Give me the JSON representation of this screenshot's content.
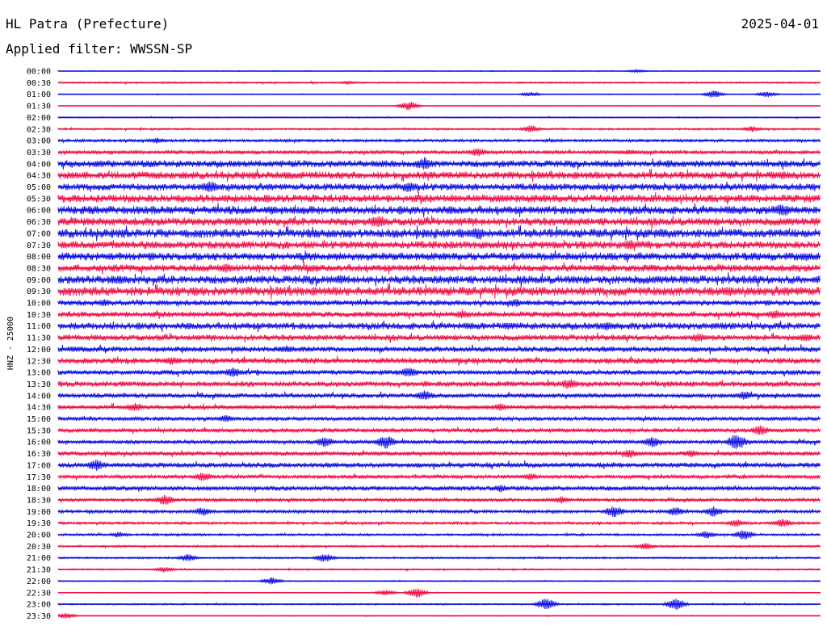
{
  "header": {
    "station": "HL Patra (Prefecture)",
    "date": "2025-04-01",
    "filter": "Applied filter: WWSSN-SP"
  },
  "colors": {
    "even": "#1010e0",
    "odd": "#ee1048"
  },
  "chart_data": {
    "type": "line",
    "title": "HL Patra (Prefecture)",
    "ylabel": "HNZ - 25000",
    "categories": [
      "00:00",
      "00:30",
      "01:00",
      "01:30",
      "02:00",
      "02:30",
      "03:00",
      "03:30",
      "04:00",
      "04:30",
      "05:00",
      "05:30",
      "06:00",
      "06:30",
      "07:00",
      "07:30",
      "08:00",
      "08:30",
      "09:00",
      "09:30",
      "10:00",
      "10:30",
      "11:00",
      "11:30",
      "12:00",
      "12:30",
      "13:00",
      "13:30",
      "14:00",
      "14:30",
      "15:00",
      "15:30",
      "16:00",
      "16:30",
      "17:00",
      "17:30",
      "18:00",
      "18:30",
      "19:00",
      "19:30",
      "20:00",
      "20:30",
      "21:00",
      "21:30",
      "22:00",
      "22:30",
      "23:00",
      "23:30"
    ],
    "noise_level": [
      0.4,
      0.8,
      0.5,
      0.3,
      0.6,
      1.0,
      1.4,
      1.8,
      3.5,
      3.8,
      3.5,
      4.0,
      4.2,
      4.0,
      4.5,
      3.8,
      4.0,
      3.6,
      4.2,
      4.6,
      2.8,
      3.0,
      3.5,
      3.0,
      2.8,
      3.0,
      2.6,
      2.8,
      2.4,
      2.2,
      2.0,
      2.2,
      2.0,
      2.2,
      2.6,
      2.0,
      2.4,
      1.6,
      1.6,
      1.3,
      1.2,
      1.0,
      0.9,
      0.8,
      0.6,
      0.5,
      0.8,
      0.4
    ],
    "events": [
      [
        0.76,
        2
      ],
      [
        0.38,
        2
      ],
      [
        0.62,
        3
      ],
      [
        0.86,
        5
      ],
      [
        0.93,
        4
      ],
      [
        0.46,
        6
      ],
      [
        0.91,
        4
      ],
      [
        0.62,
        5
      ],
      [
        0.13,
        4
      ],
      [
        0.3,
        2
      ],
      [
        0.55,
        6
      ],
      [
        0.75,
        4
      ],
      [
        0.48,
        9
      ],
      [
        0.8,
        5
      ],
      [
        0.3,
        5
      ],
      [
        0.95,
        6
      ],
      [
        0.46,
        7
      ],
      [
        0.2,
        8
      ],
      [
        0.58,
        5
      ],
      [
        0.28,
        6
      ],
      [
        0.95,
        9
      ],
      [
        0.42,
        9
      ],
      [
        0.79,
        6
      ],
      [
        0.55,
        8
      ],
      [
        0.75,
        7
      ],
      [
        0.98,
        6
      ],
      [
        0.22,
        7
      ],
      [
        0.33,
        5
      ],
      [
        0.08,
        6
      ],
      [
        0.37,
        6
      ],
      [
        0.18,
        5
      ],
      [
        0.88,
        7
      ],
      [
        0.06,
        5
      ],
      [
        0.6,
        6
      ],
      [
        0.53,
        6
      ],
      [
        0.94,
        6
      ],
      [
        0.72,
        6
      ],
      [
        0.59,
        5
      ],
      [
        0.98,
        6
      ],
      [
        0.84,
        6
      ],
      [
        0.02,
        4
      ],
      [
        0.3,
        5
      ],
      [
        0.15,
        6
      ],
      [
        0.46,
        7
      ],
      [
        0.23,
        7
      ],
      [
        0.67,
        7
      ],
      [
        0.9,
        6
      ],
      [
        0.48,
        7
      ],
      [
        0.1,
        6
      ],
      [
        0.58,
        5
      ],
      [
        0.22,
        5
      ],
      [
        0.92,
        7
      ],
      [
        0.35,
        7
      ],
      [
        0.78,
        7
      ],
      [
        0.89,
        11
      ],
      [
        0.43,
        9
      ],
      [
        0.05,
        8
      ],
      [
        0.75,
        6
      ],
      [
        0.83,
        5
      ],
      [
        0.62,
        5
      ],
      [
        0.19,
        6
      ],
      [
        0.58,
        5
      ],
      [
        0.14,
        7
      ],
      [
        0.66,
        5
      ],
      [
        0.19,
        6
      ],
      [
        0.73,
        8
      ],
      [
        0.81,
        6
      ],
      [
        0.86,
        7
      ],
      [
        0.89,
        5
      ],
      [
        0.95,
        6
      ],
      [
        0.08,
        4
      ],
      [
        0.85,
        5
      ],
      [
        0.9,
        7
      ],
      [
        0.77,
        5
      ],
      [
        0.17,
        5
      ],
      [
        0.35,
        6
      ],
      [
        0.14,
        4
      ],
      [
        0.28,
        5
      ],
      [
        0.43,
        4
      ],
      [
        0.47,
        7
      ],
      [
        0.64,
        8
      ],
      [
        0.81,
        8
      ],
      [
        0.01,
        4
      ]
    ],
    "event_rows": [
      0,
      1,
      2,
      2,
      2,
      3,
      5,
      5,
      6,
      6,
      7,
      7,
      8,
      8,
      9,
      9,
      10,
      10,
      11,
      12,
      12,
      13,
      14,
      14,
      15,
      16,
      17,
      17,
      18,
      18,
      19,
      19,
      20,
      20,
      21,
      21,
      22,
      22,
      23,
      23,
      24,
      24,
      25,
      26,
      26,
      27,
      28,
      28,
      29,
      29,
      30,
      31,
      32,
      32,
      32,
      32,
      34,
      33,
      33,
      35,
      35,
      36,
      37,
      37,
      38,
      38,
      38,
      38,
      39,
      39,
      40,
      40,
      40,
      41,
      42,
      42,
      43,
      44,
      45,
      45,
      46,
      46,
      47
    ]
  }
}
